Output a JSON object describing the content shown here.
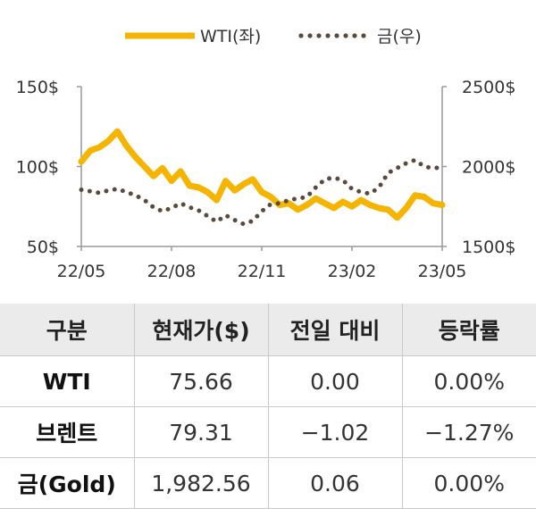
{
  "chart_data": {
    "type": "line",
    "colors": {
      "wti": "#F5B400",
      "gold": "#5a4a3c",
      "axis": "#999999"
    },
    "legend": {
      "placement": "top-center",
      "entries": [
        "WTI(좌)",
        "금(우)"
      ]
    },
    "x_tick_labels": [
      "22/05",
      "22/08",
      "22/11",
      "23/02",
      "23/05"
    ],
    "y_left": {
      "min": 50,
      "max": 150,
      "ticks": [
        50,
        100,
        150
      ],
      "tick_labels": [
        "50$",
        "100$",
        "150$"
      ]
    },
    "y_right": {
      "min": 1500,
      "max": 2500,
      "ticks": [
        1500,
        2000,
        2500
      ],
      "tick_labels": [
        "1500$",
        "2000$",
        "2500$"
      ]
    },
    "x_range": [
      0,
      12
    ],
    "series": [
      {
        "name": "WTI(좌)",
        "axis": "left",
        "style": "solid",
        "x": [
          0,
          0.3,
          0.6,
          0.9,
          1.2,
          1.5,
          1.8,
          2.1,
          2.4,
          2.7,
          3.0,
          3.3,
          3.6,
          3.9,
          4.2,
          4.5,
          4.8,
          5.1,
          5.4,
          5.7,
          6.0,
          6.3,
          6.6,
          6.9,
          7.2,
          7.5,
          7.8,
          8.1,
          8.4,
          8.7,
          9.0,
          9.3,
          9.6,
          9.9,
          10.2,
          10.5,
          10.8,
          11.1,
          11.4,
          11.7,
          12.0
        ],
        "values": [
          103,
          110,
          112,
          116,
          122,
          113,
          106,
          100,
          94,
          99,
          91,
          97,
          88,
          87,
          84,
          79,
          91,
          85,
          89,
          92,
          84,
          81,
          76,
          77,
          73,
          76,
          80,
          77,
          74,
          78,
          75,
          79,
          76,
          74,
          73,
          68,
          74,
          82,
          81,
          77,
          76
        ]
      },
      {
        "name": "금(우)",
        "axis": "right",
        "style": "dotted",
        "x": [
          0,
          0.3,
          0.6,
          0.9,
          1.2,
          1.5,
          1.8,
          2.1,
          2.4,
          2.7,
          3.0,
          3.3,
          3.6,
          3.9,
          4.2,
          4.5,
          4.8,
          5.1,
          5.4,
          5.7,
          6.0,
          6.3,
          6.6,
          6.9,
          7.2,
          7.5,
          7.8,
          8.1,
          8.4,
          8.7,
          9.0,
          9.3,
          9.6,
          9.9,
          10.2,
          10.5,
          10.8,
          11.1,
          11.4,
          11.7,
          12.0
        ],
        "values": [
          1855,
          1845,
          1835,
          1850,
          1860,
          1840,
          1820,
          1790,
          1745,
          1720,
          1740,
          1770,
          1745,
          1725,
          1690,
          1655,
          1695,
          1665,
          1640,
          1660,
          1720,
          1765,
          1770,
          1790,
          1800,
          1810,
          1870,
          1920,
          1930,
          1915,
          1860,
          1840,
          1830,
          1870,
          1960,
          1990,
          2020,
          2040,
          2000,
          1990,
          1995
        ]
      }
    ]
  },
  "table": {
    "headers": [
      "구분",
      "현재가($)",
      "전일 대비",
      "등락률"
    ],
    "rows": [
      [
        "WTI",
        "75.66",
        "0.00",
        "0.00%"
      ],
      [
        "브렌트",
        "79.31",
        "−1.02",
        "−1.27%"
      ],
      [
        "금(Gold)",
        "1,982.56",
        "0.06",
        "0.00%"
      ]
    ]
  }
}
